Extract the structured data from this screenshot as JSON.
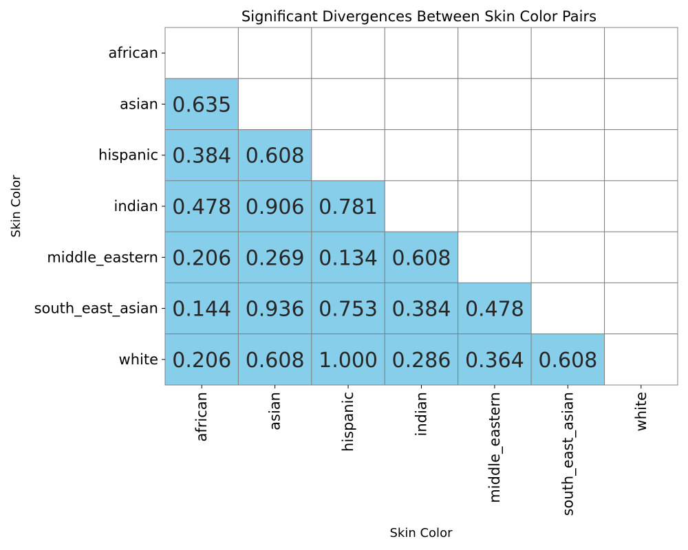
{
  "chart_data": {
    "type": "heatmap",
    "title": "Significant Divergences Between Skin Color Pairs",
    "xlabel": "Skin Color",
    "ylabel": "Skin Color",
    "rows": [
      "african",
      "asian",
      "hispanic",
      "indian",
      "middle_eastern",
      "south_east_asian",
      "white"
    ],
    "columns": [
      "african",
      "asian",
      "hispanic",
      "indian",
      "middle_eastern",
      "south_east_asian",
      "white"
    ],
    "values": [
      [
        null,
        null,
        null,
        null,
        null,
        null,
        null
      ],
      [
        "0.635",
        null,
        null,
        null,
        null,
        null,
        null
      ],
      [
        "0.384",
        "0.608",
        null,
        null,
        null,
        null,
        null
      ],
      [
        "0.478",
        "0.906",
        "0.781",
        null,
        null,
        null,
        null
      ],
      [
        "0.206",
        "0.269",
        "0.134",
        "0.608",
        null,
        null,
        null
      ],
      [
        "0.144",
        "0.936",
        "0.753",
        "0.384",
        "0.478",
        null,
        null
      ],
      [
        "0.206",
        "0.608",
        "1.000",
        "0.286",
        "0.364",
        "0.608",
        null
      ]
    ],
    "cell_color": "#87ceeb",
    "empty_color": "#ffffff",
    "grid_color": "#808080",
    "grid": true,
    "legend": false,
    "colorbar": false
  }
}
